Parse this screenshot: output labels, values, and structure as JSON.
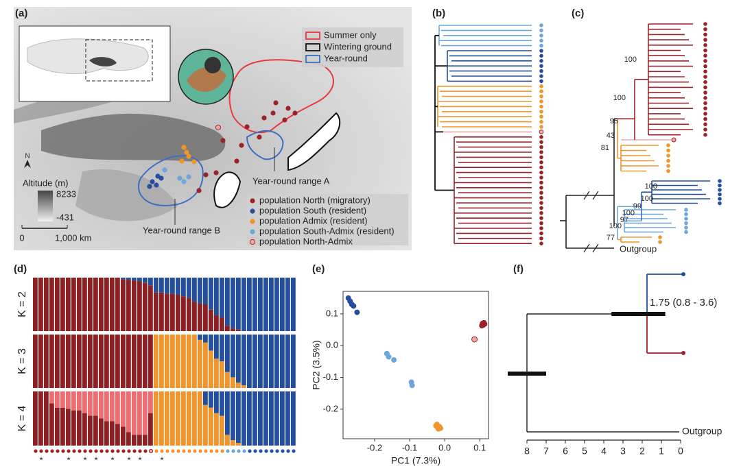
{
  "panel_labels": [
    "(a)",
    "(b)",
    "(c)",
    "(d)",
    "(e)",
    "(f)"
  ],
  "map": {
    "range_legend": [
      {
        "label": "Summer only",
        "color": "#e8383d"
      },
      {
        "label": "Wintering ground",
        "color": "#111111"
      },
      {
        "label": "Year-round",
        "color": "#3a6fc4"
      }
    ],
    "north": "N",
    "altitude_title": "Altitude (m)",
    "altitude_max": 8233,
    "altitude_min": -431,
    "scale_start": "0",
    "scale_end": "1,000 km",
    "range_a": "Year-round range A",
    "range_b": "Year-round range B"
  },
  "populations": [
    {
      "name": "population North (migratory)",
      "color": "#9b2327"
    },
    {
      "name": "population South (resident)",
      "color": "#234f9e"
    },
    {
      "name": "population Admix (resident)",
      "color": "#f0952b"
    },
    {
      "name": "population South-Admix (resident)",
      "color": "#6ea6dc"
    },
    {
      "name": "population North-Admix",
      "color": "#f2a7a7"
    }
  ],
  "trees": {
    "b_groups": [
      {
        "pop": 3,
        "count": 5
      },
      {
        "pop": 1,
        "count": 7
      },
      {
        "pop": 2,
        "count": 9
      },
      {
        "pop": 4,
        "count": 1
      },
      {
        "pop": 0,
        "count": 22
      }
    ],
    "c_bootstrap": [
      "100",
      "100",
      "95",
      "43",
      "81",
      "100",
      "100",
      "99",
      "100",
      "97",
      "100",
      "77"
    ],
    "outgroup": "Outgroup"
  },
  "chart_data": [
    {
      "type": "admixture",
      "rows": [
        {
          "label": "K = 2",
          "series": [
            {
              "color": "#8e1f22",
              "values": [
                1,
                1,
                1,
                1,
                1,
                1,
                1,
                1,
                1,
                1,
                1,
                1,
                1,
                1,
                1,
                1,
                0.97,
                0.96,
                0.95,
                0.93,
                0.9,
                0.85,
                0.72,
                0.72,
                0.7,
                0.7,
                0.68,
                0.65,
                0.62,
                0.55,
                0.52,
                0.5,
                0.4,
                0.3,
                0.25,
                0.1,
                0.05,
                0.03,
                0,
                0,
                0,
                0,
                0,
                0,
                0,
                0,
                0,
                0
              ]
            },
            {
              "color": "#234f9e",
              "values": [
                0,
                0,
                0,
                0,
                0,
                0,
                0,
                0,
                0,
                0,
                0,
                0,
                0,
                0,
                0,
                0,
                0.03,
                0.04,
                0.05,
                0.07,
                0.1,
                0.15,
                0.28,
                0.28,
                0.3,
                0.3,
                0.32,
                0.35,
                0.38,
                0.45,
                0.48,
                0.5,
                0.6,
                0.7,
                0.75,
                0.9,
                0.95,
                0.97,
                1,
                1,
                1,
                1,
                1,
                1,
                1,
                1,
                1,
                1
              ]
            }
          ]
        },
        {
          "label": "K = 3",
          "series": [
            {
              "color": "#8e1f22",
              "values": [
                1,
                1,
                1,
                1,
                1,
                1,
                1,
                1,
                1,
                1,
                1,
                1,
                1,
                1,
                1,
                1,
                1,
                1,
                1,
                1,
                1,
                1,
                0,
                0,
                0,
                0,
                0,
                0,
                0,
                0,
                0,
                0,
                0,
                0,
                0,
                0,
                0,
                0,
                0,
                0,
                0,
                0,
                0,
                0,
                0,
                0,
                0,
                0
              ]
            },
            {
              "color": "#f0952b",
              "values": [
                0,
                0,
                0,
                0,
                0,
                0,
                0,
                0,
                0,
                0,
                0,
                0,
                0,
                0,
                0,
                0,
                0,
                0,
                0,
                0,
                0,
                0,
                1,
                1,
                1,
                1,
                1,
                1,
                1,
                1,
                0.9,
                0.85,
                0.7,
                0.55,
                0.5,
                0.3,
                0.2,
                0.1,
                0.05,
                0,
                0,
                0,
                0,
                0,
                0,
                0,
                0,
                0
              ]
            },
            {
              "color": "#234f9e",
              "values": [
                0,
                0,
                0,
                0,
                0,
                0,
                0,
                0,
                0,
                0,
                0,
                0,
                0,
                0,
                0,
                0,
                0,
                0,
                0,
                0,
                0,
                0,
                0,
                0,
                0,
                0,
                0,
                0,
                0,
                0,
                0.1,
                0.15,
                0.3,
                0.45,
                0.5,
                0.7,
                0.8,
                0.9,
                0.95,
                1,
                1,
                1,
                1,
                1,
                1,
                1,
                1,
                1
              ]
            }
          ]
        },
        {
          "label": "K = 4",
          "series": [
            {
              "color": "#8e1f22",
              "values": [
                1,
                1,
                1,
                0.78,
                0.7,
                0.7,
                0.68,
                0.65,
                0.65,
                0.6,
                0.55,
                0.55,
                0.5,
                0.45,
                0.45,
                0.4,
                0.35,
                0.25,
                0.2,
                0.2,
                0.2,
                0.6,
                0,
                0,
                0,
                0,
                0,
                0,
                0,
                0,
                0,
                0,
                0,
                0,
                0,
                0,
                0,
                0,
                0,
                0,
                0,
                0,
                0,
                0,
                0,
                0,
                0,
                0
              ]
            },
            {
              "color": "#f06b6f",
              "values": [
                0,
                0,
                0,
                0.22,
                0.3,
                0.3,
                0.32,
                0.35,
                0.35,
                0.4,
                0.45,
                0.45,
                0.5,
                0.55,
                0.55,
                0.6,
                0.65,
                0.75,
                0.8,
                0.8,
                0.8,
                0.4,
                0,
                0,
                0,
                0,
                0,
                0,
                0,
                0,
                0,
                0,
                0,
                0,
                0,
                0,
                0,
                0,
                0,
                0,
                0,
                0,
                0,
                0,
                0,
                0,
                0,
                0
              ]
            },
            {
              "color": "#f0952b",
              "values": [
                0,
                0,
                0,
                0,
                0,
                0,
                0,
                0,
                0,
                0,
                0,
                0,
                0,
                0,
                0,
                0,
                0,
                0,
                0,
                0,
                0,
                0,
                1,
                1,
                1,
                1,
                1,
                1,
                1,
                1,
                1,
                0.75,
                0.7,
                0.6,
                0.55,
                0.2,
                0.1,
                0.05,
                0,
                0,
                0,
                0,
                0,
                0,
                0,
                0,
                0,
                0
              ]
            },
            {
              "color": "#234f9e",
              "values": [
                0,
                0,
                0,
                0,
                0,
                0,
                0,
                0,
                0,
                0,
                0,
                0,
                0,
                0,
                0,
                0,
                0,
                0,
                0,
                0,
                0,
                0,
                0,
                0,
                0,
                0,
                0,
                0,
                0,
                0,
                0,
                0.25,
                0.3,
                0.4,
                0.45,
                0.8,
                0.9,
                0.95,
                1,
                1,
                1,
                1,
                1,
                1,
                1,
                1,
                1,
                1
              ]
            }
          ]
        }
      ],
      "individual_groups": [
        {
          "pop": 0,
          "count": 21
        },
        {
          "pop": 4,
          "count": 1
        },
        {
          "pop": 2,
          "count": 13
        },
        {
          "pop": 3,
          "count": 4
        },
        {
          "pop": 1,
          "count": 9
        }
      ],
      "star_label": "*",
      "star_indices": [
        1,
        6,
        9,
        11,
        14,
        17,
        19,
        23
      ]
    },
    {
      "type": "scatter",
      "xlabel": "PC1 (7.3%)",
      "ylabel": "PC2 (3.5%)",
      "xlim": [
        -0.29,
        0.125
      ],
      "ylim": [
        -0.293,
        0.171
      ],
      "xticks": [
        -0.2,
        -0.1,
        {
          "value": 0,
          "label": "0.0"
        },
        0.1
      ],
      "yticks": [
        0.1,
        {
          "value": 0,
          "label": "0.0"
        },
        -0.1,
        -0.2
      ],
      "series": [
        {
          "color": "#234f9e",
          "x": [
            -0.275,
            -0.27,
            -0.265,
            -0.26,
            -0.25
          ],
          "values": [
            0.15,
            0.14,
            0.13,
            0.125,
            0.105
          ]
        },
        {
          "color": "#6ea6dc",
          "x": [
            -0.165,
            -0.16,
            -0.145,
            -0.095,
            -0.093
          ],
          "values": [
            -0.025,
            -0.035,
            -0.045,
            -0.115,
            -0.125
          ]
        },
        {
          "color": "#f0952b",
          "x": [
            -0.025,
            -0.02,
            -0.015,
            -0.018,
            -0.022,
            -0.012
          ],
          "values": [
            -0.252,
            -0.258,
            -0.255,
            -0.262,
            -0.248,
            -0.26
          ]
        },
        {
          "color": "#9b2327",
          "x": [
            0.108,
            0.112,
            0.11,
            0.114,
            0.106
          ],
          "values": [
            0.07,
            0.072,
            0.065,
            0.068,
            0.063
          ]
        },
        {
          "color": "#f2a7a7",
          "x": [
            0.085
          ],
          "values": [
            0.02
          ]
        }
      ]
    },
    {
      "type": "time-tree",
      "xlim": [
        8,
        0
      ],
      "xticks": [
        8,
        7,
        6,
        5,
        4,
        3,
        2,
        1,
        0
      ],
      "root_age": 8,
      "root_hpd": [
        7,
        9
      ],
      "node_age": 1.75,
      "node_hpd": [
        0.8,
        3.6
      ],
      "node_label": "1.75 (0.8 - 3.6)",
      "outgroup": "Outgroup",
      "colors": [
        "#234f9e",
        "#9b2327"
      ]
    }
  ]
}
